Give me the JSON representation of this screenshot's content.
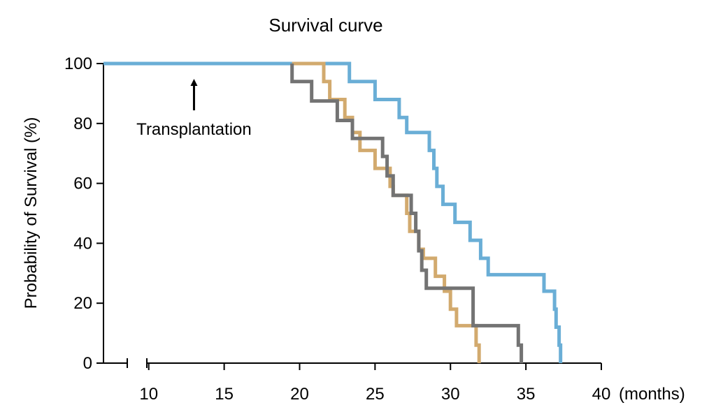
{
  "chart_data": {
    "type": "line",
    "step": true,
    "title": "Survival curve",
    "xlabel": "",
    "x_unit_label": "(months)",
    "ylabel": "Probability of Survival (%)",
    "xlim": [
      7,
      40
    ],
    "ylim": [
      0,
      100
    ],
    "x_ticks": [
      10,
      15,
      20,
      25,
      30,
      35,
      40
    ],
    "y_ticks": [
      0,
      20,
      40,
      60,
      80,
      100
    ],
    "x_axis_break": true,
    "grid": false,
    "legend": "none",
    "annotations": [
      {
        "text": "Transplantation",
        "x": 13,
        "arrow_to_y": 100
      }
    ],
    "series": [
      {
        "color": "#6aaed6",
        "points": [
          [
            7,
            100
          ],
          [
            23.3,
            100
          ],
          [
            23.3,
            94
          ],
          [
            25,
            94
          ],
          [
            25,
            88
          ],
          [
            26.6,
            88
          ],
          [
            26.6,
            82
          ],
          [
            27.1,
            82
          ],
          [
            27.1,
            77
          ],
          [
            28.6,
            77
          ],
          [
            28.6,
            71
          ],
          [
            28.9,
            71
          ],
          [
            28.9,
            65
          ],
          [
            29.1,
            65
          ],
          [
            29.1,
            59
          ],
          [
            29.5,
            59
          ],
          [
            29.5,
            53
          ],
          [
            30.3,
            53
          ],
          [
            30.3,
            47
          ],
          [
            31.3,
            47
          ],
          [
            31.3,
            41
          ],
          [
            32,
            41
          ],
          [
            32,
            35
          ],
          [
            32.5,
            35
          ],
          [
            32.5,
            29.5
          ],
          [
            36.2,
            29.5
          ],
          [
            36.2,
            24
          ],
          [
            36.9,
            24
          ],
          [
            36.9,
            18
          ],
          [
            37,
            18
          ],
          [
            37,
            12
          ],
          [
            37.2,
            12
          ],
          [
            37.2,
            6
          ],
          [
            37.3,
            6
          ],
          [
            37.3,
            0
          ]
        ]
      },
      {
        "color": "#d2aa6e",
        "points": [
          [
            19.5,
            100
          ],
          [
            21.6,
            100
          ],
          [
            21.6,
            94
          ],
          [
            22,
            94
          ],
          [
            22,
            88
          ],
          [
            23,
            88
          ],
          [
            23,
            82
          ],
          [
            23.5,
            82
          ],
          [
            23.5,
            77
          ],
          [
            24,
            77
          ],
          [
            24,
            71
          ],
          [
            25,
            71
          ],
          [
            25,
            65
          ],
          [
            26,
            65
          ],
          [
            26,
            59
          ],
          [
            26.2,
            59
          ],
          [
            26.2,
            56
          ],
          [
            27.1,
            56
          ],
          [
            27.1,
            50
          ],
          [
            27.3,
            50
          ],
          [
            27.3,
            44
          ],
          [
            27.9,
            44
          ],
          [
            27.9,
            38
          ],
          [
            28.2,
            38
          ],
          [
            28.2,
            35
          ],
          [
            29,
            35
          ],
          [
            29,
            29
          ],
          [
            29.6,
            29
          ],
          [
            29.6,
            24
          ],
          [
            30,
            24
          ],
          [
            30,
            18
          ],
          [
            30.4,
            18
          ],
          [
            30.4,
            12.5
          ],
          [
            31.7,
            12.5
          ],
          [
            31.7,
            6
          ],
          [
            31.9,
            6
          ],
          [
            31.9,
            0
          ]
        ]
      },
      {
        "color": "#737373",
        "points": [
          [
            19.5,
            100
          ],
          [
            19.5,
            94
          ],
          [
            20.8,
            94
          ],
          [
            20.8,
            87.5
          ],
          [
            22.5,
            87.5
          ],
          [
            22.5,
            81
          ],
          [
            23.5,
            81
          ],
          [
            23.5,
            75
          ],
          [
            25.5,
            75
          ],
          [
            25.5,
            69
          ],
          [
            25.8,
            69
          ],
          [
            25.8,
            62.5
          ],
          [
            26.2,
            62.5
          ],
          [
            26.2,
            56
          ],
          [
            27.4,
            56
          ],
          [
            27.4,
            50
          ],
          [
            27.7,
            50
          ],
          [
            27.7,
            44
          ],
          [
            27.9,
            44
          ],
          [
            27.9,
            37.5
          ],
          [
            28.1,
            37.5
          ],
          [
            28.1,
            31
          ],
          [
            28.4,
            31
          ],
          [
            28.4,
            25
          ],
          [
            31.5,
            25
          ],
          [
            31.5,
            12.5
          ],
          [
            34.5,
            12.5
          ],
          [
            34.5,
            6
          ],
          [
            34.7,
            6
          ],
          [
            34.7,
            0
          ]
        ]
      }
    ]
  }
}
